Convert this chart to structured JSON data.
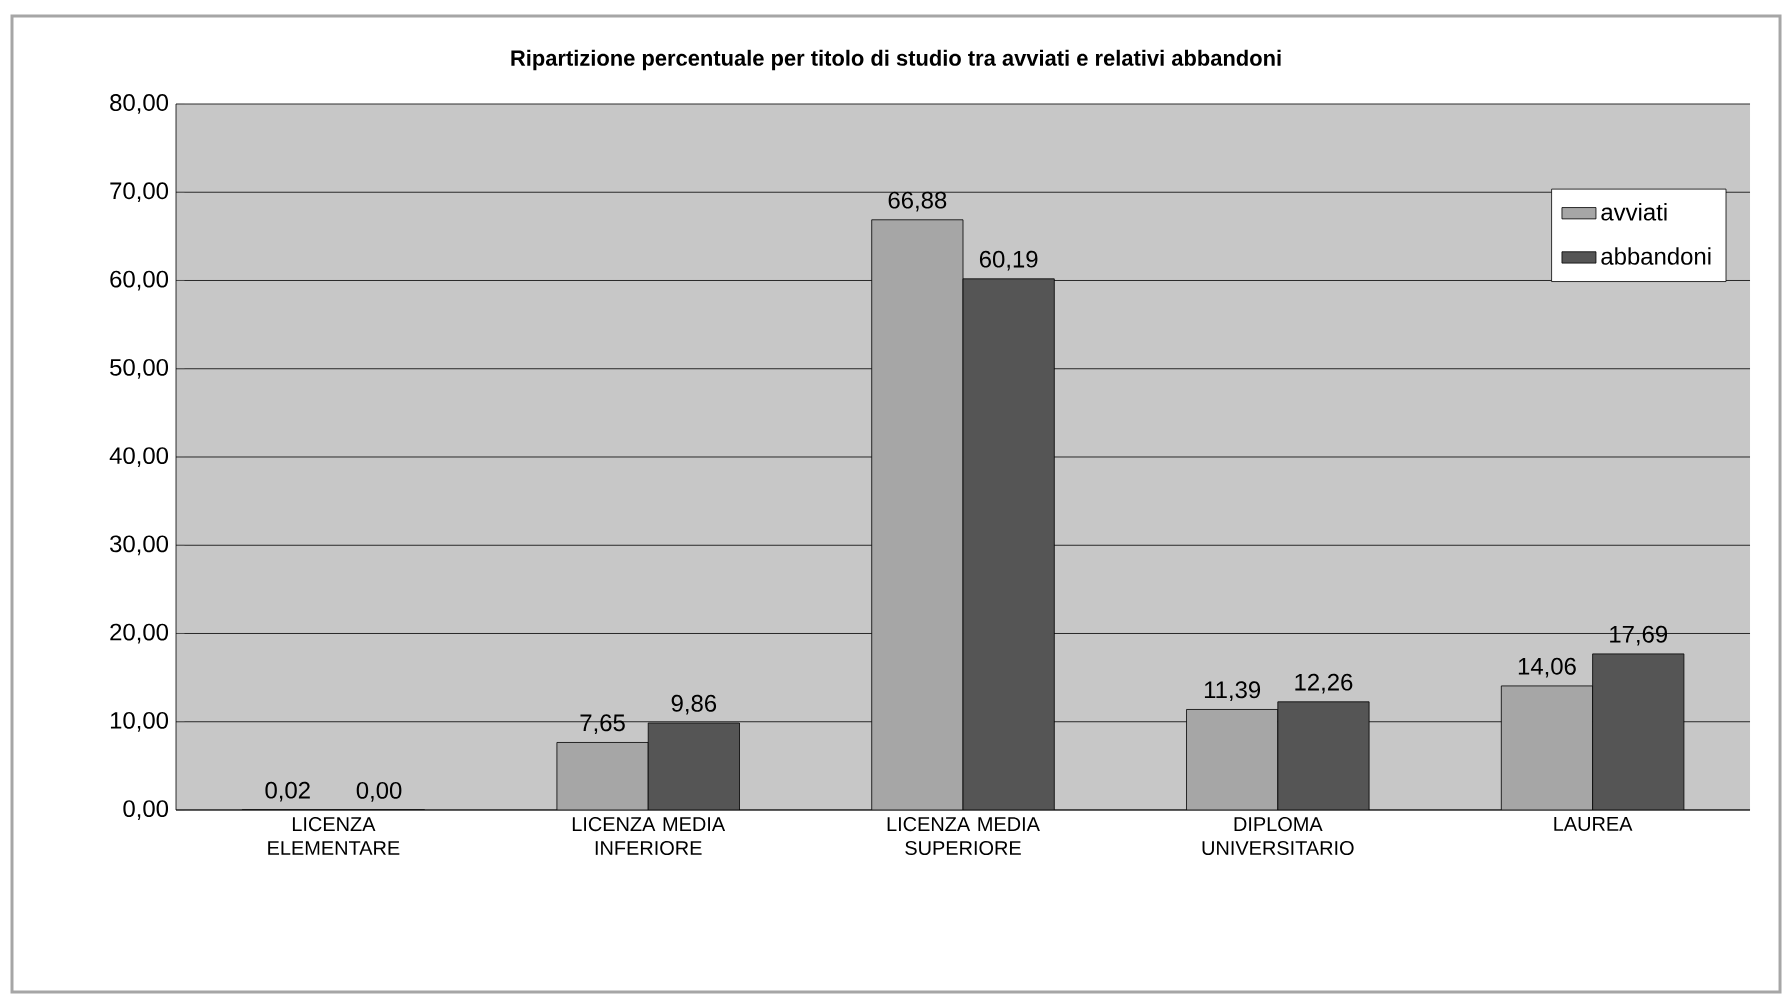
{
  "chart_data": {
    "type": "bar",
    "title": "Ripartizione percentuale per titolo di studio tra avviati e relativi abbandoni",
    "categories": [
      "LICENZA ELEMENTARE",
      "LICENZA MEDIA INFERIORE",
      "LICENZA MEDIA SUPERIORE",
      "DIPLOMA UNIVERSITARIO",
      "LAUREA"
    ],
    "series": [
      {
        "name": "avviati",
        "color": "#a6a6a6",
        "values": [
          0.02,
          7.65,
          66.88,
          11.39,
          14.06
        ],
        "value_labels": [
          "0,02",
          "7,65",
          "66,88",
          "11,39",
          "14,06"
        ]
      },
      {
        "name": "abbandoni",
        "color": "#555555",
        "values": [
          0.0,
          9.86,
          60.19,
          12.26,
          17.69
        ],
        "value_labels": [
          "0,00",
          "9,86",
          "60,19",
          "12,26",
          "17,69"
        ]
      }
    ],
    "ylim": [
      0,
      80
    ],
    "yticks": [
      {
        "value": 0,
        "label": "0,00"
      },
      {
        "value": 10,
        "label": "10,00"
      },
      {
        "value": 20,
        "label": "20,00"
      },
      {
        "value": 30,
        "label": "30,00"
      },
      {
        "value": 40,
        "label": "40,00"
      },
      {
        "value": 50,
        "label": "50,00"
      },
      {
        "value": 60,
        "label": "60,00"
      },
      {
        "value": 70,
        "label": "70,00"
      },
      {
        "value": 80,
        "label": "80,00"
      }
    ],
    "grid": "y",
    "legend": "top right"
  }
}
